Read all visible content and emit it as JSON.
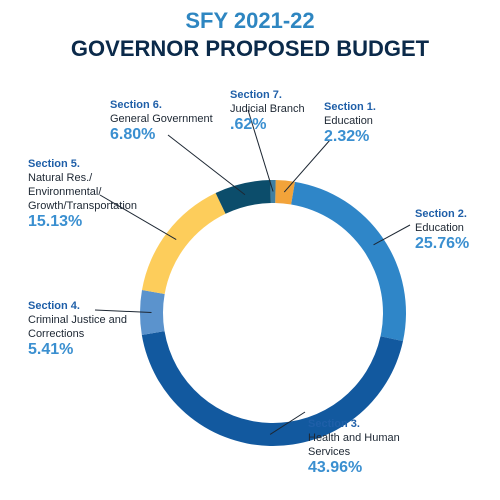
{
  "title": "SFY 2021-22",
  "subtitle": "GOVERNOR PROPOSED BUDGET",
  "chart_data": {
    "type": "pie",
    "style": "donut",
    "slices": [
      {
        "section": "Section 1.",
        "name": "Education",
        "value": 2.32,
        "label": "2.32%",
        "color": "#f2a33a"
      },
      {
        "section": "Section 2.",
        "name": "Education",
        "value": 25.76,
        "label": "25.76%",
        "color": "#2f86c8"
      },
      {
        "section": "Section 3.",
        "name": "Health and Human Services",
        "value": 43.96,
        "label": "43.96%",
        "color": "#12599f"
      },
      {
        "section": "Section 4.",
        "name": "Criminal Justice and Corrections",
        "value": 5.41,
        "label": "5.41%",
        "color": "#5b93cd"
      },
      {
        "section": "Section 5.",
        "name": "Natural Res./ Environmental/ Growth/Transportation",
        "value": 15.13,
        "label": "15.13%",
        "color": "#fdcd5b"
      },
      {
        "section": "Section 6.",
        "name": "General Government",
        "value": 6.8,
        "label": "6.80%",
        "color": "#0c4d6b"
      },
      {
        "section": "Section 7.",
        "name": "Judicial Branch",
        "value": 0.62,
        "label": ".62%",
        "color": "#3f7fa3"
      }
    ]
  }
}
